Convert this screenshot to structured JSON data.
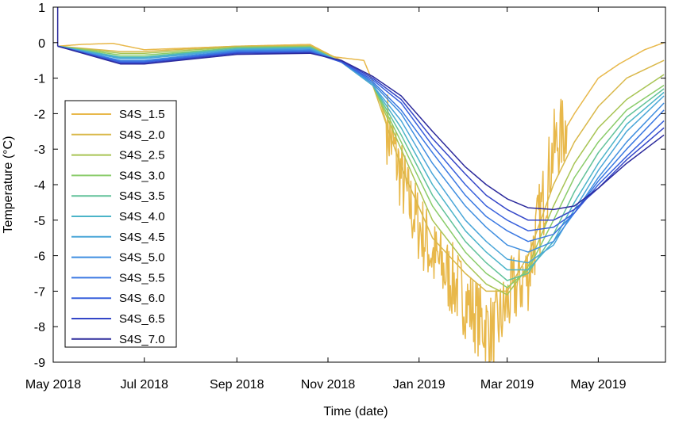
{
  "chart_data": {
    "type": "line",
    "title": "",
    "xlabel": "Time (date)",
    "ylabel": "Temperature (°C)",
    "xlim": [
      "2018-05-01",
      "2019-06-15"
    ],
    "ylim": [
      -9,
      1
    ],
    "grid": false,
    "legend_position": "left",
    "x_ticks": [
      {
        "date": "2018-05-01",
        "label": "May 2018"
      },
      {
        "date": "2018-07-01",
        "label": "Jul 2018"
      },
      {
        "date": "2018-09-01",
        "label": "Sep 2018"
      },
      {
        "date": "2018-11-01",
        "label": "Nov 2018"
      },
      {
        "date": "2019-01-01",
        "label": "Jan 2019"
      },
      {
        "date": "2019-03-01",
        "label": "Mar 2019"
      },
      {
        "date": "2019-05-01",
        "label": "May 2019"
      }
    ],
    "y_ticks": [
      1,
      0,
      -1,
      -2,
      -3,
      -4,
      -5,
      -6,
      -7,
      -8,
      -9
    ],
    "series": [
      {
        "name": "S4S_1.5",
        "color": "#e8b84a",
        "noise": true,
        "x": [
          "2018-05-04",
          "2018-05-20",
          "2018-06-10",
          "2018-07-01",
          "2018-09-01",
          "2018-10-20",
          "2018-11-05",
          "2018-11-25",
          "2018-12-05",
          "2018-12-15",
          "2018-12-25",
          "2019-01-10",
          "2019-01-25",
          "2019-02-10",
          "2019-02-20",
          "2019-03-05",
          "2019-03-15",
          "2019-03-25",
          "2019-04-01",
          "2019-04-15",
          "2019-05-01",
          "2019-05-15",
          "2019-06-01",
          "2019-06-14"
        ],
        "y": [
          -0.1,
          -0.05,
          -0.02,
          -0.2,
          -0.1,
          -0.05,
          -0.4,
          -0.5,
          -1.5,
          -3.0,
          -4.5,
          -6.0,
          -6.8,
          -7.8,
          -8.2,
          -7.0,
          -6.5,
          -4.5,
          -3.0,
          -2.0,
          -1.0,
          -0.6,
          -0.2,
          0.0
        ]
      },
      {
        "name": "S4S_2.0",
        "color": "#d9b84a",
        "x": [
          "2018-05-04",
          "2018-06-15",
          "2018-07-01",
          "2018-09-01",
          "2018-10-20",
          "2018-11-10",
          "2018-12-01",
          "2018-12-20",
          "2019-01-10",
          "2019-02-01",
          "2019-02-15",
          "2019-03-01",
          "2019-03-15",
          "2019-04-01",
          "2019-04-15",
          "2019-05-01",
          "2019-05-20",
          "2019-06-14"
        ],
        "y": [
          -0.1,
          -0.25,
          -0.25,
          -0.1,
          -0.08,
          -0.5,
          -1.2,
          -3.5,
          -5.5,
          -6.5,
          -7.0,
          -7.0,
          -6.0,
          -4.0,
          -2.8,
          -1.8,
          -1.0,
          -0.5
        ]
      },
      {
        "name": "S4S_2.5",
        "color": "#a8c454",
        "x": [
          "2018-05-04",
          "2018-06-15",
          "2018-07-01",
          "2018-09-01",
          "2018-10-20",
          "2018-11-10",
          "2018-12-01",
          "2018-12-20",
          "2019-01-10",
          "2019-02-01",
          "2019-02-15",
          "2019-03-01",
          "2019-03-15",
          "2019-04-01",
          "2019-04-15",
          "2019-05-01",
          "2019-05-20",
          "2019-06-14"
        ],
        "y": [
          -0.1,
          -0.3,
          -0.3,
          -0.12,
          -0.1,
          -0.55,
          -1.2,
          -3.0,
          -5.0,
          -6.2,
          -6.8,
          -7.1,
          -6.3,
          -4.6,
          -3.4,
          -2.4,
          -1.6,
          -0.9
        ]
      },
      {
        "name": "S4S_3.0",
        "color": "#8acc6a",
        "x": [
          "2018-05-04",
          "2018-06-15",
          "2018-07-01",
          "2018-09-01",
          "2018-10-20",
          "2018-11-10",
          "2018-12-01",
          "2018-12-20",
          "2019-01-10",
          "2019-02-01",
          "2019-02-15",
          "2019-03-01",
          "2019-03-15",
          "2019-04-01",
          "2019-04-15",
          "2019-05-01",
          "2019-05-20",
          "2019-06-14"
        ],
        "y": [
          -0.1,
          -0.35,
          -0.35,
          -0.15,
          -0.12,
          -0.55,
          -1.2,
          -2.8,
          -4.6,
          -5.9,
          -6.5,
          -6.9,
          -6.4,
          -5.0,
          -3.8,
          -2.8,
          -1.9,
          -1.2
        ]
      },
      {
        "name": "S4S_3.5",
        "color": "#62c29a",
        "x": [
          "2018-05-04",
          "2018-06-15",
          "2018-07-01",
          "2018-09-01",
          "2018-10-20",
          "2018-11-10",
          "2018-12-01",
          "2018-12-20",
          "2019-01-10",
          "2019-02-01",
          "2019-02-15",
          "2019-03-01",
          "2019-03-15",
          "2019-04-01",
          "2019-04-15",
          "2019-05-01",
          "2019-05-20",
          "2019-06-14"
        ],
        "y": [
          -0.1,
          -0.4,
          -0.4,
          -0.15,
          -0.13,
          -0.55,
          -1.2,
          -2.6,
          -4.3,
          -5.6,
          -6.2,
          -6.7,
          -6.5,
          -5.4,
          -4.2,
          -3.1,
          -2.1,
          -1.3
        ]
      },
      {
        "name": "S4S_4.0",
        "color": "#4bb4c8",
        "x": [
          "2018-05-04",
          "2018-06-15",
          "2018-07-01",
          "2018-09-01",
          "2018-10-20",
          "2018-11-10",
          "2018-12-01",
          "2018-12-20",
          "2019-01-10",
          "2019-02-01",
          "2019-02-15",
          "2019-03-01",
          "2019-03-15",
          "2019-04-01",
          "2019-04-15",
          "2019-05-01",
          "2019-05-20",
          "2019-06-14"
        ],
        "y": [
          -0.1,
          -0.42,
          -0.42,
          -0.18,
          -0.15,
          -0.55,
          -1.2,
          -2.4,
          -4.0,
          -5.3,
          -5.9,
          -6.4,
          -6.4,
          -5.6,
          -4.5,
          -3.4,
          -2.3,
          -1.4
        ]
      },
      {
        "name": "S4S_4.5",
        "color": "#4aa6d8",
        "x": [
          "2018-05-04",
          "2018-06-15",
          "2018-07-01",
          "2018-09-01",
          "2018-10-20",
          "2018-11-10",
          "2018-12-01",
          "2018-12-20",
          "2019-01-10",
          "2019-02-01",
          "2019-02-15",
          "2019-03-01",
          "2019-03-15",
          "2019-04-01",
          "2019-04-15",
          "2019-05-01",
          "2019-05-20",
          "2019-06-14"
        ],
        "y": [
          -0.1,
          -0.45,
          -0.45,
          -0.2,
          -0.17,
          -0.55,
          -1.2,
          -2.2,
          -3.7,
          -5.0,
          -5.6,
          -6.1,
          -6.2,
          -5.7,
          -4.7,
          -3.6,
          -2.5,
          -1.5
        ]
      },
      {
        "name": "S4S_5.0",
        "color": "#3f8ee0",
        "x": [
          "2018-05-04",
          "2018-06-15",
          "2018-07-01",
          "2018-09-01",
          "2018-10-20",
          "2018-11-10",
          "2018-12-01",
          "2018-12-20",
          "2019-01-10",
          "2019-02-01",
          "2019-02-15",
          "2019-03-01",
          "2019-03-15",
          "2019-04-01",
          "2019-04-15",
          "2019-05-01",
          "2019-05-20",
          "2019-06-14"
        ],
        "y": [
          -0.1,
          -0.5,
          -0.5,
          -0.22,
          -0.2,
          -0.55,
          -1.15,
          -2.0,
          -3.4,
          -4.6,
          -5.2,
          -5.7,
          -5.9,
          -5.6,
          -4.8,
          -3.8,
          -2.8,
          -1.7
        ]
      },
      {
        "name": "S4S_5.5",
        "color": "#3a78e2",
        "x": [
          "2018-05-04",
          "2018-06-15",
          "2018-07-01",
          "2018-09-01",
          "2018-10-20",
          "2018-11-10",
          "2018-12-01",
          "2018-12-20",
          "2019-01-10",
          "2019-02-01",
          "2019-02-15",
          "2019-03-01",
          "2019-03-15",
          "2019-04-01",
          "2019-04-15",
          "2019-05-01",
          "2019-05-20",
          "2019-06-14"
        ],
        "y": [
          -0.1,
          -0.52,
          -0.52,
          -0.25,
          -0.23,
          -0.55,
          -1.1,
          -1.9,
          -3.1,
          -4.3,
          -4.9,
          -5.3,
          -5.6,
          -5.4,
          -4.8,
          -3.9,
          -3.0,
          -1.9
        ]
      },
      {
        "name": "S4S_6.0",
        "color": "#3860dc",
        "x": [
          "2018-05-04",
          "2018-06-15",
          "2018-07-01",
          "2018-09-01",
          "2018-10-20",
          "2018-11-10",
          "2018-12-01",
          "2018-12-20",
          "2019-01-10",
          "2019-02-01",
          "2019-02-15",
          "2019-03-01",
          "2019-03-15",
          "2019-04-01",
          "2019-04-15",
          "2019-05-01",
          "2019-05-20",
          "2019-06-14"
        ],
        "y": [
          -0.1,
          -0.55,
          -0.55,
          -0.28,
          -0.26,
          -0.55,
          -1.05,
          -1.7,
          -2.9,
          -4.0,
          -4.6,
          -5.0,
          -5.3,
          -5.2,
          -4.8,
          -4.0,
          -3.2,
          -2.2
        ]
      },
      {
        "name": "S4S_6.5",
        "color": "#3446c8",
        "x": [
          "2018-05-04",
          "2018-06-15",
          "2018-07-01",
          "2018-09-01",
          "2018-10-20",
          "2018-11-10",
          "2018-12-01",
          "2018-12-20",
          "2019-01-10",
          "2019-02-01",
          "2019-02-15",
          "2019-03-01",
          "2019-03-15",
          "2019-04-01",
          "2019-04-15",
          "2019-05-01",
          "2019-05-20",
          "2019-06-14"
        ],
        "y": [
          -0.1,
          -0.58,
          -0.58,
          -0.3,
          -0.28,
          -0.52,
          -1.0,
          -1.6,
          -2.7,
          -3.7,
          -4.3,
          -4.7,
          -5.0,
          -5.0,
          -4.7,
          -4.1,
          -3.3,
          -2.4
        ]
      },
      {
        "name": "S4S_7.0",
        "color": "#2c2a9c",
        "x": [
          "2018-05-04",
          "2018-06-15",
          "2018-07-01",
          "2018-09-01",
          "2018-10-20",
          "2018-11-10",
          "2018-12-01",
          "2018-12-20",
          "2019-01-10",
          "2019-02-01",
          "2019-02-15",
          "2019-03-01",
          "2019-03-15",
          "2019-04-01",
          "2019-04-15",
          "2019-05-01",
          "2019-05-20",
          "2019-06-14"
        ],
        "y": [
          -0.1,
          -0.6,
          -0.6,
          -0.33,
          -0.3,
          -0.5,
          -0.95,
          -1.5,
          -2.5,
          -3.5,
          -4.0,
          -4.4,
          -4.65,
          -4.7,
          -4.6,
          -4.1,
          -3.4,
          -2.6
        ]
      }
    ]
  }
}
